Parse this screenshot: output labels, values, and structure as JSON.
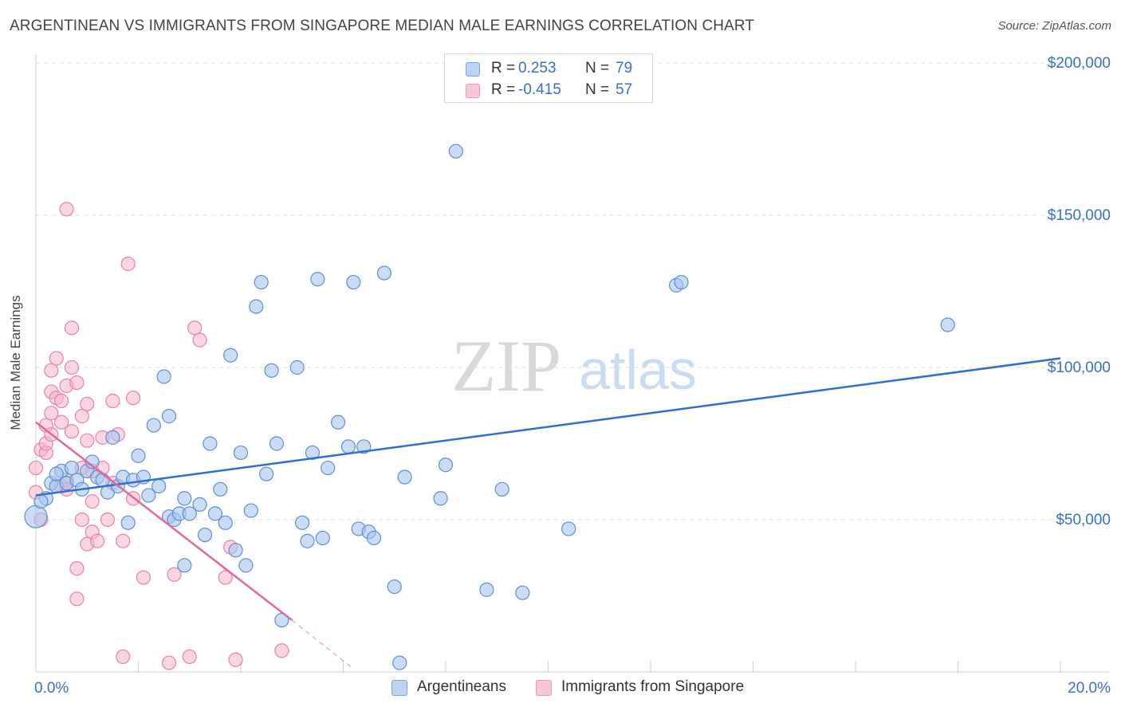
{
  "header": {
    "title": "ARGENTINEAN VS IMMIGRANTS FROM SINGAPORE MEDIAN MALE EARNINGS CORRELATION CHART",
    "source": "Source: ZipAtlas.com"
  },
  "watermark": {
    "zip": "ZIP",
    "atlas": "atlas"
  },
  "legend": {
    "series1": {
      "r_label": "R =",
      "r_value": "0.253",
      "n_label": "N =",
      "n_value": "79"
    },
    "series2": {
      "r_label": "R =",
      "r_value": "-0.415",
      "n_label": "N =",
      "n_value": "57"
    }
  },
  "colors": {
    "blue_fill": "#a9c6ef",
    "blue_stroke": "#5d8fd6",
    "blue_line": "#2f6fd0",
    "pink_fill": "#f6b5c8",
    "pink_stroke": "#e883a3",
    "pink_line": "#e0689a",
    "axis_text": "#3a6fc4",
    "grid": "#dddddd"
  },
  "chart_data": {
    "type": "scatter",
    "title": "ARGENTINEAN VS IMMIGRANTS FROM SINGAPORE MEDIAN MALE EARNINGS CORRELATION CHART",
    "xlabel": "",
    "ylabel": "Median Male Earnings",
    "xlim": [
      0,
      20
    ],
    "ylim": [
      0,
      200000
    ],
    "x_tick_labels": [
      "0.0%",
      "20.0%"
    ],
    "y_ticks": [
      {
        "value": 50000,
        "label": "$50,000"
      },
      {
        "value": 100000,
        "label": "$100,000"
      },
      {
        "value": 150000,
        "label": "$150,000"
      },
      {
        "value": 200000,
        "label": "$200,000"
      }
    ],
    "grid": true,
    "legend_position": "top-center",
    "series": [
      {
        "name": "Argentineans",
        "color": "#a9c6ef",
        "trend": {
          "x": [
            0,
            20
          ],
          "y": [
            58000,
            103000
          ]
        },
        "points": [
          [
            0.0,
            51000
          ],
          [
            0.2,
            57000
          ],
          [
            0.3,
            62000
          ],
          [
            0.4,
            61000
          ],
          [
            0.5,
            66000
          ],
          [
            0.6,
            62000
          ],
          [
            0.7,
            67000
          ],
          [
            0.8,
            63000
          ],
          [
            0.9,
            60000
          ],
          [
            1.0,
            66000
          ],
          [
            1.1,
            69000
          ],
          [
            1.2,
            64000
          ],
          [
            1.3,
            63000
          ],
          [
            1.4,
            59000
          ],
          [
            1.5,
            77000
          ],
          [
            1.6,
            61000
          ],
          [
            1.7,
            64000
          ],
          [
            1.8,
            49000
          ],
          [
            1.9,
            63000
          ],
          [
            2.0,
            71000
          ],
          [
            2.1,
            64000
          ],
          [
            2.2,
            58000
          ],
          [
            2.3,
            81000
          ],
          [
            2.4,
            61000
          ],
          [
            2.5,
            97000
          ],
          [
            2.6,
            51000
          ],
          [
            2.6,
            84000
          ],
          [
            2.7,
            50000
          ],
          [
            2.8,
            52000
          ],
          [
            2.9,
            57000
          ],
          [
            2.9,
            35000
          ],
          [
            3.0,
            52000
          ],
          [
            3.2,
            55000
          ],
          [
            3.3,
            45000
          ],
          [
            3.4,
            75000
          ],
          [
            3.5,
            52000
          ],
          [
            3.6,
            60000
          ],
          [
            3.7,
            49000
          ],
          [
            3.8,
            104000
          ],
          [
            3.9,
            40000
          ],
          [
            4.0,
            72000
          ],
          [
            4.1,
            35000
          ],
          [
            4.2,
            53000
          ],
          [
            4.3,
            120000
          ],
          [
            4.4,
            128000
          ],
          [
            4.5,
            65000
          ],
          [
            4.6,
            99000
          ],
          [
            4.7,
            75000
          ],
          [
            4.8,
            17000
          ],
          [
            5.1,
            100000
          ],
          [
            5.2,
            49000
          ],
          [
            5.3,
            43000
          ],
          [
            5.4,
            72000
          ],
          [
            5.5,
            129000
          ],
          [
            5.6,
            44000
          ],
          [
            5.7,
            67000
          ],
          [
            5.9,
            82000
          ],
          [
            6.1,
            74000
          ],
          [
            6.2,
            128000
          ],
          [
            6.3,
            47000
          ],
          [
            6.4,
            74000
          ],
          [
            6.5,
            46000
          ],
          [
            6.6,
            44000
          ],
          [
            6.8,
            131000
          ],
          [
            7.0,
            28000
          ],
          [
            7.1,
            3000
          ],
          [
            7.2,
            64000
          ],
          [
            7.9,
            57000
          ],
          [
            8.0,
            68000
          ],
          [
            8.2,
            171000
          ],
          [
            8.8,
            27000
          ],
          [
            9.1,
            60000
          ],
          [
            9.5,
            26000
          ],
          [
            10.4,
            47000
          ],
          [
            12.5,
            127000
          ],
          [
            12.6,
            128000
          ],
          [
            17.8,
            114000
          ],
          [
            0.1,
            56000
          ],
          [
            0.4,
            65000
          ]
        ]
      },
      {
        "name": "Immigrants from Singapore",
        "color": "#f6b5c8",
        "trend": {
          "x": [
            0,
            5
          ],
          "y": [
            82000,
            17000
          ],
          "dashed_extension": {
            "x": [
              5,
              6.2
            ],
            "y": [
              17000,
              1000
            ]
          }
        },
        "points": [
          [
            0.0,
            59000
          ],
          [
            0.0,
            67000
          ],
          [
            0.1,
            73000
          ],
          [
            0.1,
            50000
          ],
          [
            0.2,
            72000
          ],
          [
            0.2,
            81000
          ],
          [
            0.2,
            75000
          ],
          [
            0.3,
            78000
          ],
          [
            0.3,
            85000
          ],
          [
            0.3,
            92000
          ],
          [
            0.3,
            99000
          ],
          [
            0.4,
            103000
          ],
          [
            0.4,
            90000
          ],
          [
            0.5,
            89000
          ],
          [
            0.5,
            82000
          ],
          [
            0.5,
            61000
          ],
          [
            0.6,
            63000
          ],
          [
            0.6,
            60000
          ],
          [
            0.6,
            94000
          ],
          [
            0.6,
            152000
          ],
          [
            0.7,
            100000
          ],
          [
            0.7,
            79000
          ],
          [
            0.7,
            113000
          ],
          [
            0.8,
            34000
          ],
          [
            0.8,
            24000
          ],
          [
            0.8,
            95000
          ],
          [
            0.9,
            50000
          ],
          [
            0.9,
            67000
          ],
          [
            0.9,
            84000
          ],
          [
            1.0,
            42000
          ],
          [
            1.0,
            76000
          ],
          [
            1.0,
            88000
          ],
          [
            1.1,
            56000
          ],
          [
            1.1,
            66000
          ],
          [
            1.1,
            46000
          ],
          [
            1.2,
            43000
          ],
          [
            1.3,
            67000
          ],
          [
            1.3,
            77000
          ],
          [
            1.4,
            50000
          ],
          [
            1.5,
            89000
          ],
          [
            1.5,
            62000
          ],
          [
            1.6,
            78000
          ],
          [
            1.7,
            5000
          ],
          [
            1.7,
            43000
          ],
          [
            1.8,
            134000
          ],
          [
            1.9,
            90000
          ],
          [
            1.9,
            57000
          ],
          [
            2.1,
            31000
          ],
          [
            2.6,
            3000
          ],
          [
            2.7,
            32000
          ],
          [
            3.0,
            5000
          ],
          [
            3.1,
            113000
          ],
          [
            3.2,
            109000
          ],
          [
            3.7,
            31000
          ],
          [
            3.8,
            41000
          ],
          [
            3.9,
            4000
          ],
          [
            4.8,
            7000
          ]
        ]
      }
    ]
  },
  "bottom_legend": {
    "series1_label": "Argentineans",
    "series2_label": "Immigrants from Singapore"
  }
}
